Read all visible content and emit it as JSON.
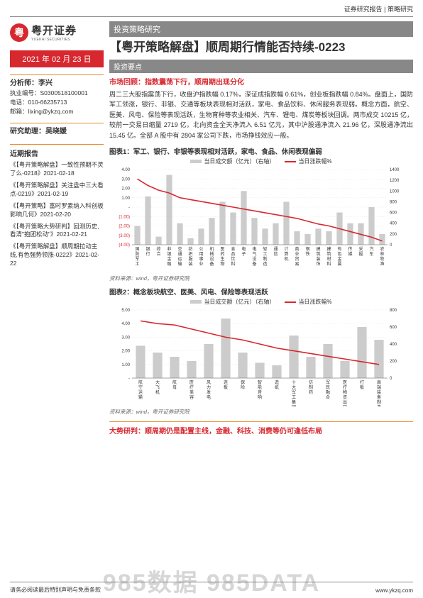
{
  "header": {
    "top_right": "证券研究报告 | 策略研究"
  },
  "logo": {
    "mark_text": "粤",
    "title": "粤开证券",
    "subtitle": "YUEKAI SECURITIES"
  },
  "date_bar": "2021 年 02 月 23 日",
  "analyst": {
    "label": "分析师：李兴",
    "cert": "执业编号：S0300518100001",
    "phone": "电话：010-66235713",
    "email": "邮箱：lixing@ykzq.com"
  },
  "assistant": {
    "label": "研究助理：吴晓媛"
  },
  "recent_reports": {
    "heading": "近期报告",
    "items": [
      "《【粤开策略解盘】一致性预期不灵了么-0218》2021-02-18",
      "《【粤开策略解盘】关注盘中三大看点-0219》2021-02-19",
      "《【粤开策略】富时罗素纳入科创板影响几何》2021-02-20",
      "《【粤开策略大势研判】回测历史,看清\"抱团松动\"》2021-02-21",
      "《【粤开策略解盘】顺周期拉动主线,有色强势领涨-0222》2021-02-22"
    ]
  },
  "right": {
    "strategy_label": "投资策略研究",
    "main_title": "【粤开策略解盘】顺周期行情能否持续-0223",
    "key_points_label": "投资要点",
    "market_review_heading": "市场回顾：指数震荡下行，顺周期出现分化",
    "body": "周二三大股指震荡下行，收盘沪指跌幅 0.17%，深证成指跌幅 0.61%，创业板指跌幅 0.84%。盘面上，国防军工领涨，银行、非银、交通等板块表现相对活跃，家电、食品饮料、休闲服务表现弱。概念方面，航空、医美、风电、保险等表现活跃，生物育种等农业相关、汽车、锂电、煤炭等板块回调。两市成交 10215 亿，较前一交易日缩量 2719 亿。北向资金全天净流入 6.51 亿元，其中沪股通净流入 21.96 亿，深股通净流出 15.45 亿。全部 A 股中有 2804 家公司下跌，市场挣钱效应一般。",
    "judgement_heading": "大势研判：顺周期仍是配置主线，金融、科技、消费等仍可逢低布局"
  },
  "chart1": {
    "title": "图表1：军工、银行、非银等表现相对活跃，家电、食品、休闲表现偏弱",
    "legend_bar": "当日成交额（亿元）（右轴）",
    "legend_line": "当日涨跌幅%",
    "source": "资料来源：wind，粤开证券研究院",
    "y_left": {
      "ticks": [
        "4.00",
        "3.00",
        "2.00",
        "1.00",
        "-",
        "(1.00)",
        "(2.00)",
        "(3.00)",
        "(4.00)"
      ],
      "colors": [
        "#333",
        "#333",
        "#333",
        "#333",
        "#333",
        "#d7282f",
        "#d7282f",
        "#d7282f",
        "#d7282f"
      ]
    },
    "y_right": {
      "ticks": [
        "1400",
        "1200",
        "1000",
        "800",
        "600",
        "400",
        "200",
        "0"
      ]
    },
    "categories": [
      "国防军工",
      "银行",
      "综合",
      "非银金融",
      "交通运输",
      "纺织服装",
      "公用事业",
      "机械设备",
      "医药生物",
      "食品饮料",
      "电子",
      "电气设备",
      "轻工制造",
      "通信",
      "计算机",
      "商业贸易",
      "钢铁",
      "建筑装饰",
      "建筑材料",
      "有色金属",
      "传媒",
      "采掘",
      "汽车",
      "农林牧渔"
    ],
    "line_values": [
      3.0,
      2.3,
      1.8,
      1.5,
      1.0,
      0.8,
      0.6,
      0.4,
      0.2,
      0.0,
      -0.2,
      -0.4,
      -0.6,
      -0.8,
      -1.0,
      -1.2,
      -1.5,
      -1.8,
      -2.0,
      -2.3,
      -2.6,
      -2.9,
      -3.2,
      -3.6
    ],
    "bar_values": [
      350,
      900,
      150,
      1300,
      400,
      120,
      300,
      500,
      800,
      600,
      1000,
      500,
      300,
      400,
      800,
      250,
      200,
      300,
      250,
      600,
      400,
      400,
      700,
      200
    ],
    "bar_color": "#cccccc",
    "line_color": "#d7282f",
    "bg": "#ffffff",
    "grid_color": "#e0e0e0",
    "y_left_range": [
      -4,
      4
    ],
    "y_right_range": [
      0,
      1400
    ]
  },
  "chart2": {
    "title": "图表2：概念板块航空、医美、风电、保险等表现活跃",
    "legend_bar": "当日成交额（亿元）（右轴）",
    "legend_line": "当日涨跌幅%",
    "source": "资料来源：wind，粤开证券研究院",
    "y_left": {
      "ticks": [
        "5.00",
        "4.00",
        "3.00",
        "2.00",
        "1.00",
        "-"
      ],
      "colors": [
        "#333",
        "#333",
        "#333",
        "#333",
        "#333",
        "#333"
      ]
    },
    "y_right": {
      "ticks": [
        "800",
        "600",
        "400",
        "200",
        "0"
      ]
    },
    "categories": [
      "航空运输",
      "大飞机",
      "航母",
      "医疗美容",
      "风力发电",
      "连板",
      "保险",
      "智能音响",
      "造纸",
      "十大军工集团",
      "仿制药",
      "军民融合",
      "医疗物资出口",
      "打板",
      "高端装备制造"
    ],
    "line_values": [
      4.2,
      4.0,
      3.9,
      3.6,
      3.3,
      3.0,
      2.8,
      2.5,
      2.2,
      2.0,
      1.8,
      1.6,
      1.4,
      1.2,
      1.0
    ],
    "bar_values": [
      380,
      300,
      250,
      200,
      400,
      700,
      300,
      180,
      150,
      500,
      250,
      400,
      200,
      600,
      450
    ],
    "bar_color": "#cccccc",
    "line_color": "#d7282f",
    "bg": "#ffffff",
    "grid_color": "#e0e0e0",
    "y_left_range": [
      0,
      5
    ],
    "y_right_range": [
      0,
      800
    ]
  },
  "footer": {
    "left": "请务必阅读最后特别声明与免责条款",
    "right": "www.ykzq.com"
  },
  "watermark": "985数据 985DATA"
}
